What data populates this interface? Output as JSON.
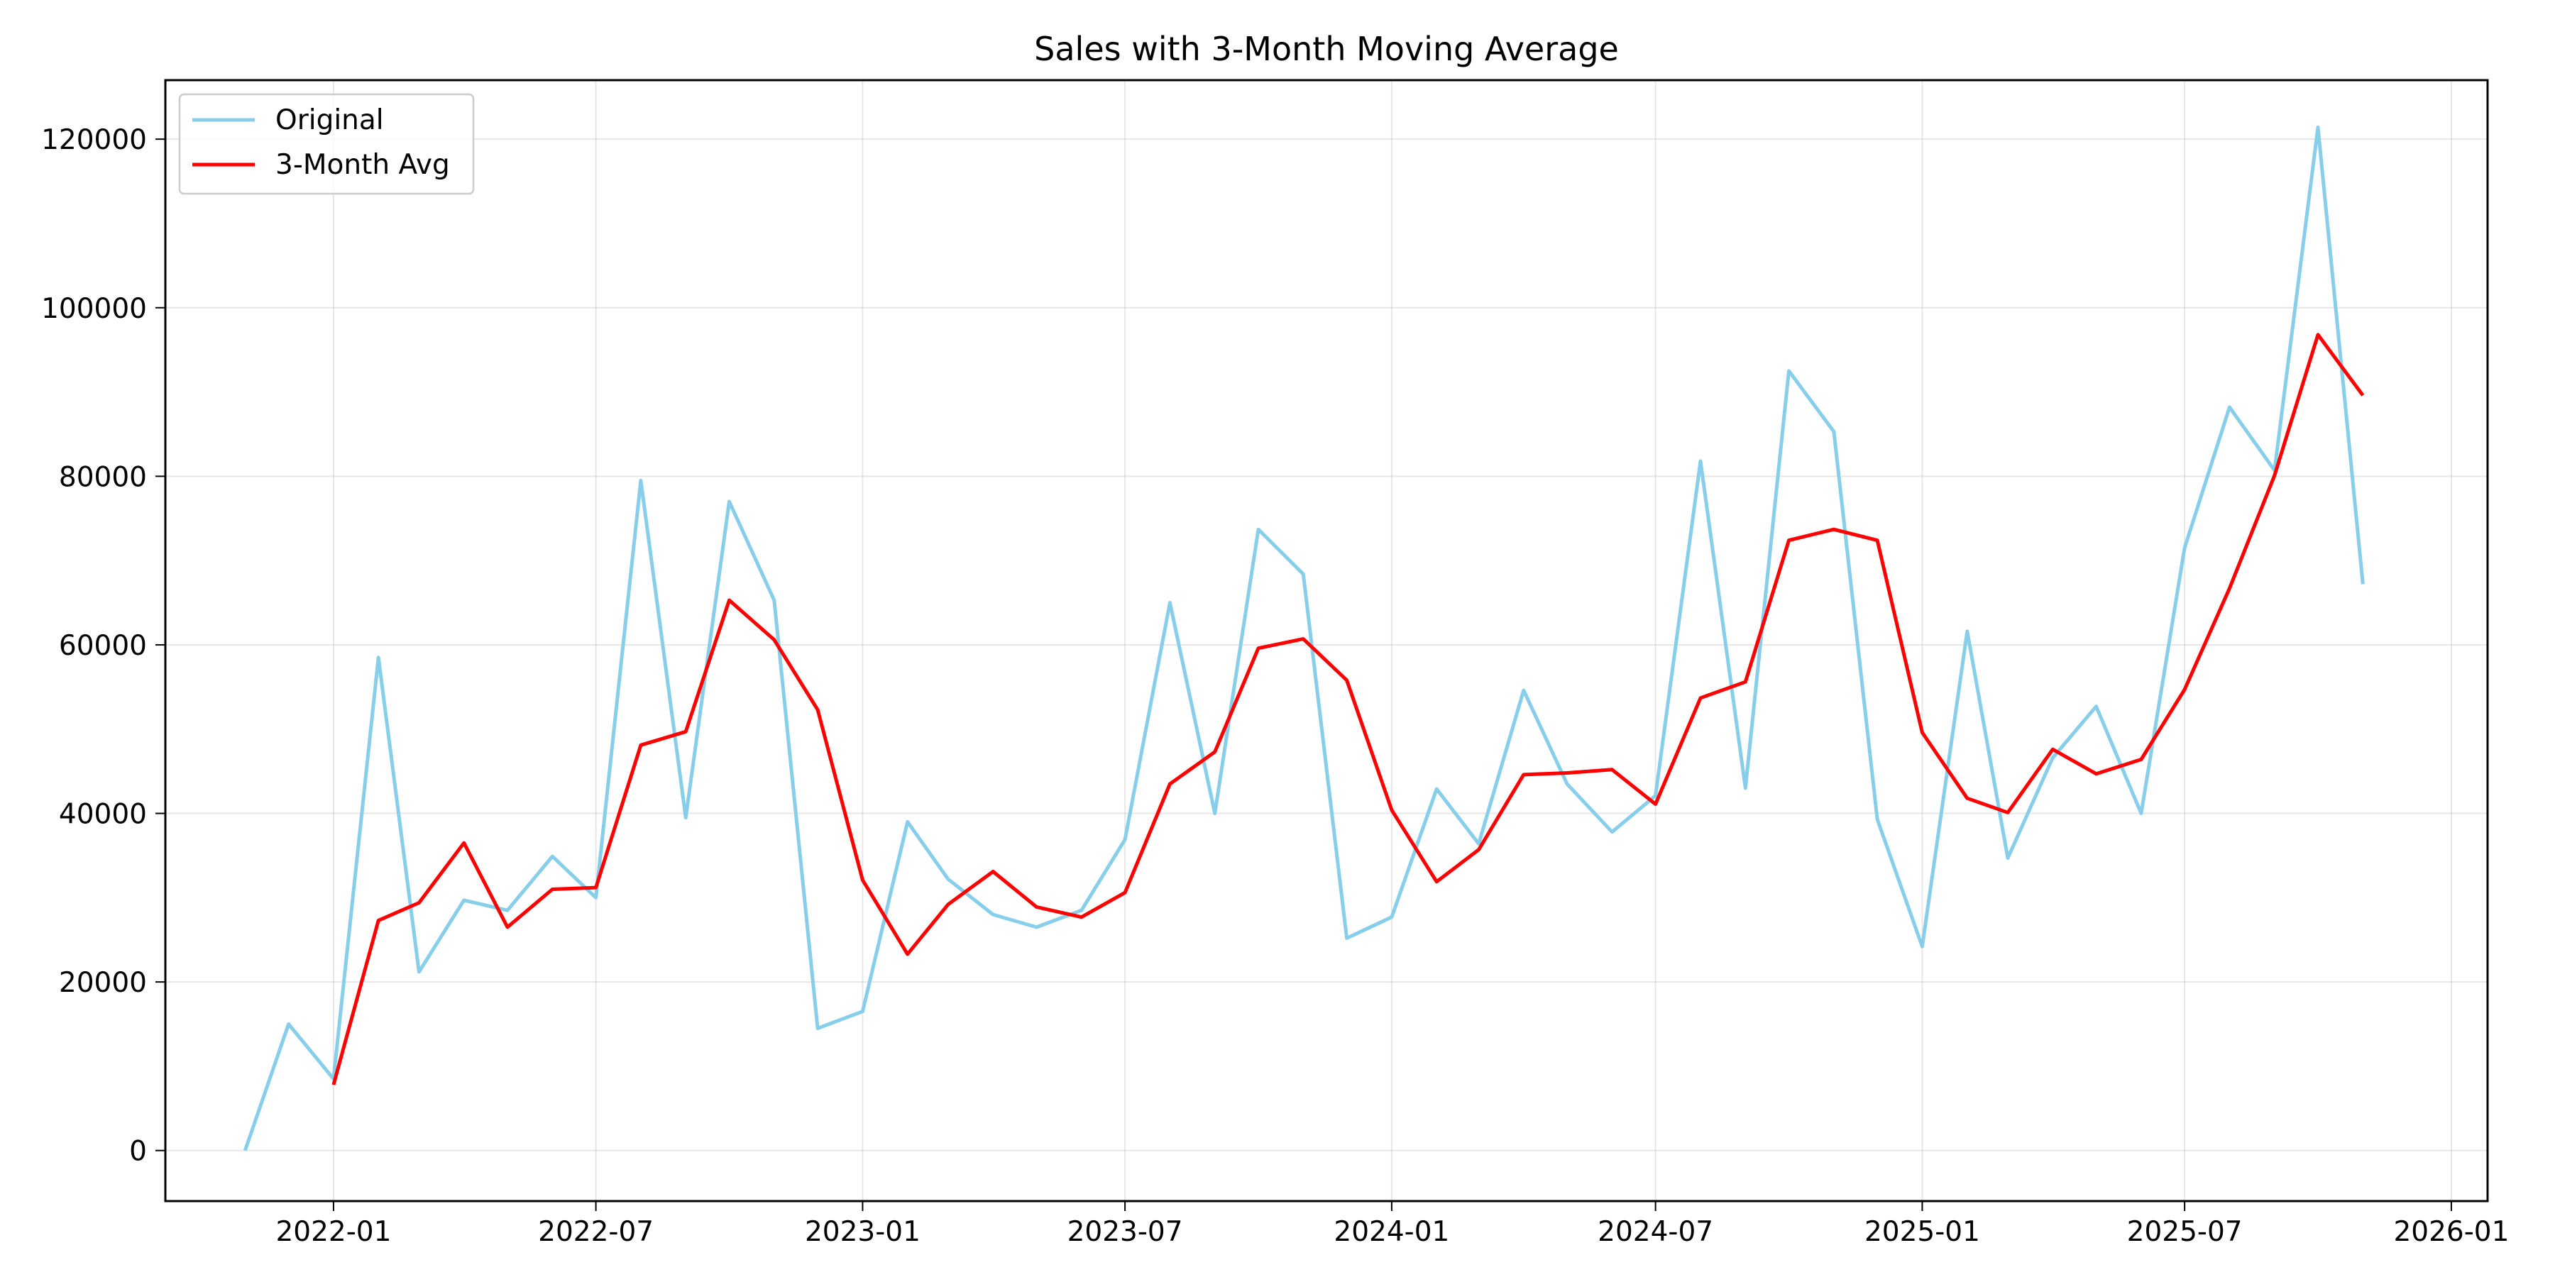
{
  "chart_data": {
    "type": "line",
    "title": "Sales with 3-Month Moving Average",
    "xlabel": "",
    "ylabel": "",
    "x_ticks": [
      "2022-01",
      "2022-07",
      "2023-01",
      "2023-07",
      "2024-01",
      "2024-07",
      "2025-01",
      "2025-07",
      "2026-01"
    ],
    "y_ticks": [
      0,
      20000,
      40000,
      60000,
      80000,
      100000,
      120000
    ],
    "xlim": [
      "2021-09-07",
      "2026-01-26"
    ],
    "ylim": [
      -6000,
      127000
    ],
    "grid": true,
    "legend_position": "upper-left",
    "x": [
      "2021-11",
      "2021-12",
      "2022-01",
      "2022-02",
      "2022-03",
      "2022-04",
      "2022-05",
      "2022-06",
      "2022-07",
      "2022-08",
      "2022-09",
      "2022-10",
      "2022-11",
      "2022-12",
      "2023-01",
      "2023-02",
      "2023-03",
      "2023-04",
      "2023-05",
      "2023-06",
      "2023-07",
      "2023-08",
      "2023-09",
      "2023-10",
      "2023-11",
      "2023-12",
      "2024-01",
      "2024-02",
      "2024-03",
      "2024-04",
      "2024-05",
      "2024-06",
      "2024-07",
      "2024-08",
      "2024-09",
      "2024-10",
      "2024-11",
      "2024-12",
      "2025-01",
      "2025-02",
      "2025-03",
      "2025-04",
      "2025-05",
      "2025-06",
      "2025-07",
      "2025-08",
      "2025-09",
      "2025-10",
      "2025-11"
    ],
    "series": [
      {
        "name": "Original",
        "color": "#87ceeb",
        "values": [
          0,
          15000,
          8500,
          58500,
          21200,
          29700,
          28500,
          34900,
          30000,
          79500,
          39500,
          77000,
          65300,
          14500,
          16500,
          39000,
          32200,
          28000,
          26500,
          28500,
          36900,
          65000,
          40000,
          73700,
          68400,
          25200,
          27700,
          42900,
          36400,
          54600,
          43500,
          37800,
          42100,
          81800,
          43000,
          92500,
          85300,
          39300,
          24200,
          61600,
          34700,
          46600,
          52700,
          40000,
          71500,
          88200,
          80700,
          121400,
          67200
        ]
      },
      {
        "name": "3-Month Avg",
        "color": "#ff0000",
        "values": [
          null,
          null,
          7800,
          27300,
          29400,
          36500,
          26500,
          31000,
          31200,
          48100,
          49700,
          65300,
          60600,
          52300,
          32100,
          23300,
          29200,
          33100,
          28900,
          27700,
          30600,
          43500,
          47300,
          59600,
          60700,
          55800,
          40400,
          31900,
          35700,
          44600,
          44800,
          45200,
          41100,
          53700,
          55600,
          72400,
          73700,
          72400,
          49600,
          41800,
          40100,
          47600,
          44700,
          46400,
          54700,
          66700,
          80100,
          96800,
          89600
        ]
      }
    ]
  }
}
